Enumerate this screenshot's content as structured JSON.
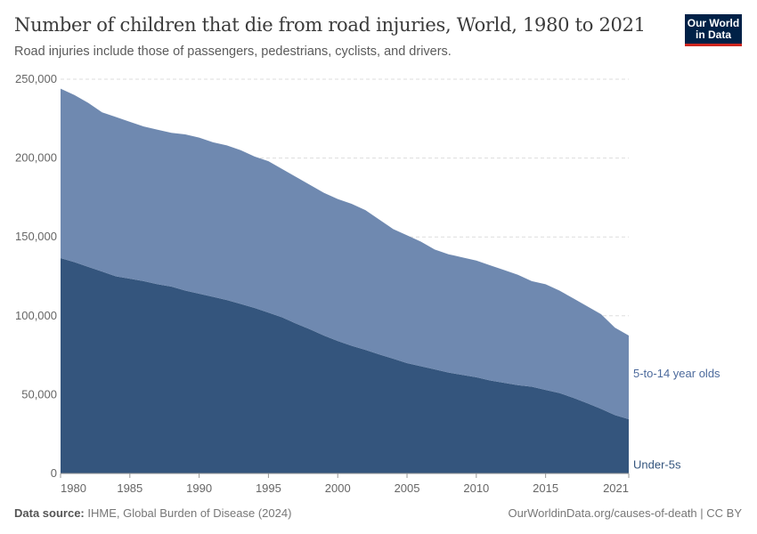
{
  "header": {
    "title": "Number of children that die from road injuries, World, 1980 to 2021",
    "subtitle": "Road injuries include those of passengers, pedestrians, cyclists, and drivers.",
    "logo": "Our World in Data"
  },
  "footer": {
    "source_label": "Data source:",
    "source": "IHME, Global Burden of Disease (2024)",
    "link": "OurWorldinData.org/causes-of-death | CC BY"
  },
  "chart_data": {
    "type": "area",
    "stacked": true,
    "title": "Number of children that die from road injuries, World, 1980 to 2021",
    "xlim": [
      1980,
      2021
    ],
    "ylim": [
      0,
      250000
    ],
    "x_ticks": [
      "1980",
      "1985",
      "1990",
      "1995",
      "2000",
      "2005",
      "2010",
      "2015",
      "2021"
    ],
    "y_ticks": [
      "0",
      "50,000",
      "100,000",
      "150,000",
      "200,000",
      "250,000"
    ],
    "grid": "horizontal dashed",
    "legend": "right, inline labels",
    "x": [
      1980,
      1981,
      1982,
      1983,
      1984,
      1985,
      1986,
      1987,
      1988,
      1989,
      1990,
      1991,
      1992,
      1993,
      1994,
      1995,
      1996,
      1997,
      1998,
      1999,
      2000,
      2001,
      2002,
      2003,
      2004,
      2005,
      2006,
      2007,
      2008,
      2009,
      2010,
      2011,
      2012,
      2013,
      2014,
      2015,
      2016,
      2017,
      2018,
      2019,
      2020,
      2021
    ],
    "series": [
      {
        "name": "Under-5s",
        "color": "#34557d",
        "values": [
          136600,
          134000,
          131000,
          128000,
          125000,
          123500,
          122000,
          120000,
          118500,
          116000,
          114000,
          112000,
          110000,
          107500,
          105000,
          102000,
          99000,
          95000,
          91400,
          87500,
          84000,
          81000,
          78400,
          75500,
          72800,
          70000,
          68000,
          66000,
          64000,
          62500,
          61000,
          59000,
          57500,
          56000,
          55000,
          53000,
          51000,
          48000,
          44600,
          41000,
          37000,
          34400
        ]
      },
      {
        "name": "5-to-14 year olds",
        "color": "#6f89b0",
        "label_color": "#4c6a9c",
        "values": [
          107400,
          106000,
          104000,
          101000,
          101000,
          99500,
          98000,
          98000,
          97500,
          99000,
          99000,
          98000,
          98000,
          97500,
          96000,
          96000,
          94000,
          93000,
          91600,
          90500,
          90000,
          90000,
          88600,
          85500,
          82200,
          81000,
          79000,
          76000,
          75000,
          74500,
          74000,
          73000,
          71500,
          70000,
          67000,
          67000,
          65000,
          63000,
          61400,
          60000,
          55500,
          53100
        ]
      }
    ]
  }
}
